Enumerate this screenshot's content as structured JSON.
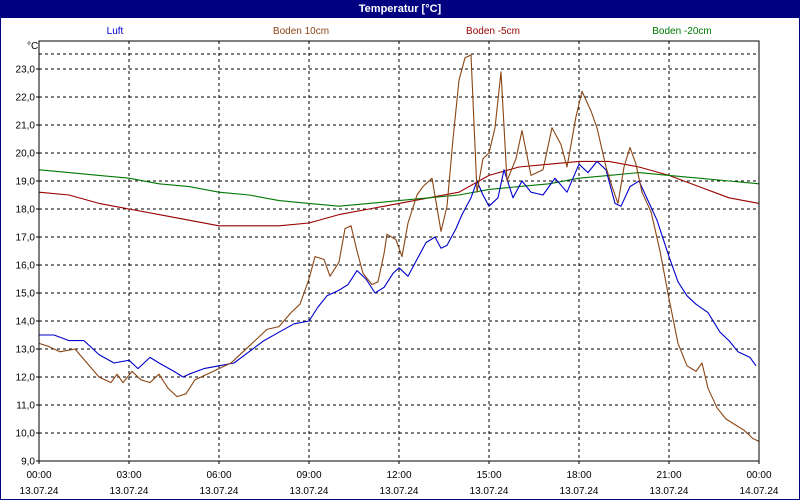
{
  "window": {
    "title": "Temperatur [°C]"
  },
  "chart_data": {
    "type": "line",
    "title": "Temperatur [°C]",
    "ylabel": "°C",
    "ylim": [
      9.0,
      24.0
    ],
    "xlim": [
      0,
      24
    ],
    "grid": true,
    "legend_placement": "top",
    "y_ticks": [
      "9,0",
      "10,0",
      "11,0",
      "12,0",
      "13,0",
      "14,0",
      "15,0",
      "16,0",
      "17,0",
      "18,0",
      "19,0",
      "20,0",
      "21,0",
      "22,0",
      "23,0"
    ],
    "x_ticks": [
      {
        "time": "00:00",
        "date": "13.07.24"
      },
      {
        "time": "03:00",
        "date": "13.07.24"
      },
      {
        "time": "06:00",
        "date": "13.07.24"
      },
      {
        "time": "09:00",
        "date": "13.07.24"
      },
      {
        "time": "12:00",
        "date": "13.07.24"
      },
      {
        "time": "15:00",
        "date": "13.07.24"
      },
      {
        "time": "18:00",
        "date": "13.07.24"
      },
      {
        "time": "21:00",
        "date": "13.07.24"
      },
      {
        "time": "00:00",
        "date": "14.07.24"
      }
    ],
    "series": [
      {
        "name": "Luft",
        "color": "#0000cc",
        "points": [
          [
            0,
            13.5
          ],
          [
            0.5,
            13.5
          ],
          [
            1,
            13.3
          ],
          [
            1.5,
            13.3
          ],
          [
            2,
            12.8
          ],
          [
            2.5,
            12.5
          ],
          [
            3,
            12.6
          ],
          [
            3.3,
            12.3
          ],
          [
            3.7,
            12.7
          ],
          [
            4,
            12.5
          ],
          [
            4.5,
            12.2
          ],
          [
            4.8,
            12.0
          ],
          [
            5,
            12.1
          ],
          [
            5.5,
            12.3
          ],
          [
            6,
            12.4
          ],
          [
            6.5,
            12.5
          ],
          [
            7,
            12.9
          ],
          [
            7.5,
            13.3
          ],
          [
            8,
            13.6
          ],
          [
            8.5,
            13.9
          ],
          [
            9,
            14.0
          ],
          [
            9.3,
            14.5
          ],
          [
            9.6,
            14.9
          ],
          [
            10,
            15.1
          ],
          [
            10.3,
            15.3
          ],
          [
            10.6,
            15.8
          ],
          [
            10.9,
            15.5
          ],
          [
            11.2,
            15.0
          ],
          [
            11.5,
            15.2
          ],
          [
            11.8,
            15.7
          ],
          [
            12,
            15.9
          ],
          [
            12.3,
            15.6
          ],
          [
            12.6,
            16.2
          ],
          [
            12.9,
            16.8
          ],
          [
            13.2,
            17.0
          ],
          [
            13.4,
            16.6
          ],
          [
            13.6,
            16.7
          ],
          [
            13.9,
            17.3
          ],
          [
            14.1,
            17.8
          ],
          [
            14.4,
            18.4
          ],
          [
            14.6,
            19.0
          ],
          [
            14.8,
            18.5
          ],
          [
            15.0,
            18.1
          ],
          [
            15.3,
            18.4
          ],
          [
            15.5,
            19.4
          ],
          [
            15.8,
            18.4
          ],
          [
            16.1,
            19.0
          ],
          [
            16.4,
            18.6
          ],
          [
            16.8,
            18.5
          ],
          [
            17.2,
            19.1
          ],
          [
            17.6,
            18.6
          ],
          [
            18,
            19.6
          ],
          [
            18.3,
            19.3
          ],
          [
            18.6,
            19.7
          ],
          [
            18.9,
            19.4
          ],
          [
            19.2,
            18.2
          ],
          [
            19.4,
            18.1
          ],
          [
            19.7,
            18.8
          ],
          [
            20,
            19.0
          ],
          [
            20.3,
            18.3
          ],
          [
            20.6,
            17.6
          ],
          [
            21,
            16.3
          ],
          [
            21.3,
            15.4
          ],
          [
            21.6,
            14.9
          ],
          [
            21.9,
            14.6
          ],
          [
            22.3,
            14.3
          ],
          [
            22.7,
            13.6
          ],
          [
            23,
            13.3
          ],
          [
            23.3,
            12.9
          ],
          [
            23.7,
            12.7
          ],
          [
            23.9,
            12.4
          ]
        ]
      },
      {
        "name": "Boden 10cm",
        "color": "#8b4513",
        "points": [
          [
            0,
            13.2
          ],
          [
            0.3,
            13.1
          ],
          [
            0.7,
            12.9
          ],
          [
            1.2,
            13.0
          ],
          [
            1.6,
            12.5
          ],
          [
            2,
            12.0
          ],
          [
            2.4,
            11.8
          ],
          [
            2.6,
            12.1
          ],
          [
            2.8,
            11.8
          ],
          [
            3.1,
            12.2
          ],
          [
            3.4,
            11.9
          ],
          [
            3.7,
            11.8
          ],
          [
            4.0,
            12.1
          ],
          [
            4.3,
            11.6
          ],
          [
            4.6,
            11.3
          ],
          [
            4.9,
            11.4
          ],
          [
            5.2,
            11.9
          ],
          [
            5.6,
            12.1
          ],
          [
            6.0,
            12.3
          ],
          [
            6.4,
            12.5
          ],
          [
            6.8,
            12.9
          ],
          [
            7.2,
            13.3
          ],
          [
            7.6,
            13.7
          ],
          [
            8.0,
            13.8
          ],
          [
            8.4,
            14.3
          ],
          [
            8.7,
            14.6
          ],
          [
            9.0,
            15.5
          ],
          [
            9.2,
            16.3
          ],
          [
            9.5,
            16.2
          ],
          [
            9.7,
            15.6
          ],
          [
            10.0,
            16.1
          ],
          [
            10.2,
            17.3
          ],
          [
            10.4,
            17.4
          ],
          [
            10.6,
            16.5
          ],
          [
            10.8,
            15.7
          ],
          [
            11.1,
            15.3
          ],
          [
            11.3,
            15.4
          ],
          [
            11.5,
            16.4
          ],
          [
            11.6,
            17.1
          ],
          [
            11.9,
            16.9
          ],
          [
            12.1,
            16.3
          ],
          [
            12.3,
            17.5
          ],
          [
            12.6,
            18.5
          ],
          [
            12.8,
            18.8
          ],
          [
            13.1,
            19.1
          ],
          [
            13.4,
            17.2
          ],
          [
            13.6,
            18.1
          ],
          [
            13.8,
            20.5
          ],
          [
            14.0,
            22.6
          ],
          [
            14.2,
            23.4
          ],
          [
            14.4,
            23.5
          ],
          [
            14.6,
            18.6
          ],
          [
            14.8,
            19.8
          ],
          [
            15.0,
            20.0
          ],
          [
            15.2,
            20.9
          ],
          [
            15.4,
            22.9
          ],
          [
            15.6,
            19.0
          ],
          [
            15.9,
            19.8
          ],
          [
            16.1,
            20.8
          ],
          [
            16.4,
            19.2
          ],
          [
            16.8,
            19.4
          ],
          [
            17.1,
            20.9
          ],
          [
            17.4,
            20.3
          ],
          [
            17.6,
            19.5
          ],
          [
            17.9,
            21.3
          ],
          [
            18.1,
            22.2
          ],
          [
            18.4,
            21.5
          ],
          [
            18.6,
            20.9
          ],
          [
            18.9,
            19.5
          ],
          [
            19.1,
            18.8
          ],
          [
            19.3,
            18.2
          ],
          [
            19.5,
            19.5
          ],
          [
            19.7,
            20.2
          ],
          [
            19.9,
            19.6
          ],
          [
            20.1,
            18.6
          ],
          [
            20.4,
            17.9
          ],
          [
            20.7,
            16.5
          ],
          [
            21.0,
            14.8
          ],
          [
            21.3,
            13.2
          ],
          [
            21.6,
            12.4
          ],
          [
            21.9,
            12.2
          ],
          [
            22.1,
            12.5
          ],
          [
            22.3,
            11.6
          ],
          [
            22.6,
            10.9
          ],
          [
            22.9,
            10.5
          ],
          [
            23.2,
            10.3
          ],
          [
            23.5,
            10.1
          ],
          [
            23.8,
            9.8
          ],
          [
            24,
            9.7
          ]
        ]
      },
      {
        "name": "Boden -5cm",
        "color": "#990000",
        "points": [
          [
            0,
            18.6
          ],
          [
            1,
            18.5
          ],
          [
            2,
            18.2
          ],
          [
            3,
            18.0
          ],
          [
            4,
            17.8
          ],
          [
            5,
            17.6
          ],
          [
            6,
            17.4
          ],
          [
            7,
            17.4
          ],
          [
            8,
            17.4
          ],
          [
            9,
            17.5
          ],
          [
            10,
            17.8
          ],
          [
            11,
            18.0
          ],
          [
            12,
            18.2
          ],
          [
            13,
            18.4
          ],
          [
            14,
            18.6
          ],
          [
            15,
            19.2
          ],
          [
            16,
            19.5
          ],
          [
            17,
            19.6
          ],
          [
            18,
            19.7
          ],
          [
            19,
            19.7
          ],
          [
            20,
            19.5
          ],
          [
            21,
            19.2
          ],
          [
            22,
            18.8
          ],
          [
            23,
            18.4
          ],
          [
            24,
            18.2
          ]
        ]
      },
      {
        "name": "Boden -20cm",
        "color": "#007700",
        "points": [
          [
            0,
            19.4
          ],
          [
            1,
            19.3
          ],
          [
            2,
            19.2
          ],
          [
            3,
            19.1
          ],
          [
            4,
            18.9
          ],
          [
            5,
            18.8
          ],
          [
            6,
            18.6
          ],
          [
            7,
            18.5
          ],
          [
            8,
            18.3
          ],
          [
            9,
            18.2
          ],
          [
            10,
            18.1
          ],
          [
            11,
            18.2
          ],
          [
            12,
            18.3
          ],
          [
            13,
            18.4
          ],
          [
            14,
            18.5
          ],
          [
            15,
            18.7
          ],
          [
            16,
            18.8
          ],
          [
            17,
            18.9
          ],
          [
            18,
            19.1
          ],
          [
            19,
            19.2
          ],
          [
            20,
            19.3
          ],
          [
            21,
            19.2
          ],
          [
            22,
            19.1
          ],
          [
            23,
            19.0
          ],
          [
            24,
            18.9
          ]
        ]
      }
    ]
  }
}
